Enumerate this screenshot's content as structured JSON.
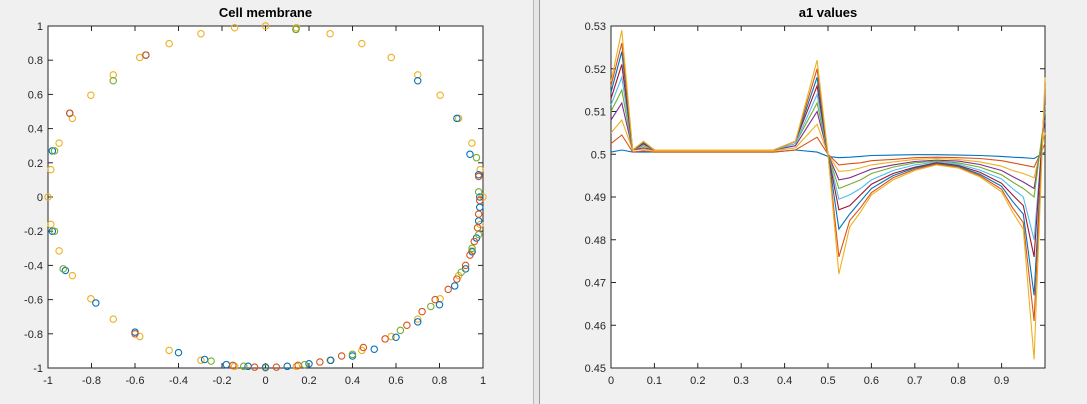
{
  "chart_data": [
    {
      "type": "scatter",
      "title": "Cell membrane",
      "xlim": [
        -1,
        1
      ],
      "ylim": [
        -1,
        1
      ],
      "x_ticks": [
        "-1",
        "-0.8",
        "-0.6",
        "-0.4",
        "-0.2",
        "0",
        "0.2",
        "0.4",
        "0.6",
        "0.8",
        "1"
      ],
      "y_ticks": [
        "-1",
        "-0.8",
        "-0.6",
        "-0.4",
        "-0.2",
        "0",
        "0.2",
        "0.4",
        "0.6",
        "0.8",
        "1"
      ],
      "grid": false,
      "marker": "open circle",
      "colors": [
        "#0072bd",
        "#d95319",
        "#edb120",
        "#7e2f8e",
        "#77ac30",
        "#4dbeee",
        "#a2142f"
      ],
      "series": [
        {
          "color": "#edb120",
          "points": [
            [
              1.0,
              0.0
            ],
            [
              0.987,
              0.16
            ],
            [
              0.949,
              0.315
            ],
            [
              0.888,
              0.46
            ],
            [
              0.803,
              0.595
            ],
            [
              0.7,
              0.714
            ],
            [
              0.578,
              0.816
            ],
            [
              0.443,
              0.897
            ],
            [
              0.297,
              0.955
            ],
            [
              0.142,
              0.99
            ],
            [
              0.0,
              1.0
            ],
            [
              -0.142,
              0.99
            ],
            [
              -0.297,
              0.955
            ],
            [
              -0.443,
              0.897
            ],
            [
              -0.578,
              0.816
            ],
            [
              -0.7,
              0.714
            ],
            [
              -0.803,
              0.595
            ],
            [
              -0.888,
              0.46
            ],
            [
              -0.949,
              0.315
            ],
            [
              -0.987,
              0.16
            ],
            [
              -1.0,
              0.0
            ],
            [
              -0.987,
              -0.16
            ],
            [
              -0.949,
              -0.315
            ],
            [
              -0.888,
              -0.46
            ],
            [
              -0.803,
              -0.595
            ],
            [
              -0.7,
              -0.714
            ],
            [
              -0.578,
              -0.816
            ],
            [
              -0.443,
              -0.897
            ],
            [
              -0.297,
              -0.955
            ],
            [
              -0.142,
              -0.99
            ],
            [
              0.0,
              -1.0
            ],
            [
              0.142,
              -0.99
            ],
            [
              0.297,
              -0.955
            ],
            [
              0.443,
              -0.897
            ],
            [
              0.578,
              -0.816
            ],
            [
              0.7,
              -0.714
            ],
            [
              0.803,
              -0.595
            ],
            [
              0.888,
              -0.46
            ],
            [
              0.949,
              -0.315
            ],
            [
              0.987,
              -0.16
            ]
          ]
        },
        {
          "color": "#0072bd",
          "points": [
            [
              0.985,
              0.0
            ],
            [
              0.98,
              0.13
            ],
            [
              0.94,
              0.25
            ],
            [
              0.88,
              0.46
            ],
            [
              0.7,
              0.68
            ],
            [
              0.14,
              0.98
            ],
            [
              -0.55,
              0.83
            ],
            [
              -0.9,
              0.49
            ],
            [
              -0.98,
              0.27
            ],
            [
              -0.98,
              -0.2
            ],
            [
              -0.92,
              -0.43
            ],
            [
              -0.78,
              -0.62
            ],
            [
              -0.6,
              -0.79
            ],
            [
              -0.4,
              -0.91
            ],
            [
              -0.28,
              -0.95
            ],
            [
              -0.18,
              -0.98
            ],
            [
              -0.08,
              -0.99
            ],
            [
              0.0,
              -0.995
            ],
            [
              0.1,
              -0.99
            ],
            [
              0.2,
              -0.975
            ],
            [
              0.3,
              -0.955
            ],
            [
              0.4,
              -0.93
            ],
            [
              0.5,
              -0.89
            ],
            [
              0.6,
              -0.82
            ],
            [
              0.7,
              -0.73
            ],
            [
              0.8,
              -0.63
            ],
            [
              0.87,
              -0.52
            ],
            [
              0.92,
              -0.42
            ],
            [
              0.95,
              -0.32
            ],
            [
              0.97,
              -0.24
            ],
            [
              0.98,
              -0.14
            ],
            [
              0.985,
              -0.06
            ]
          ]
        },
        {
          "color": "#d95319",
          "points": [
            [
              0.985,
              -0.02
            ],
            [
              0.98,
              -0.1
            ],
            [
              0.975,
              -0.18
            ],
            [
              0.96,
              -0.26
            ],
            [
              0.94,
              -0.34
            ],
            [
              0.92,
              -0.4
            ],
            [
              0.88,
              -0.48
            ],
            [
              0.84,
              -0.54
            ],
            [
              0.78,
              -0.6
            ],
            [
              0.72,
              -0.67
            ],
            [
              0.65,
              -0.75
            ],
            [
              0.55,
              -0.83
            ],
            [
              0.45,
              -0.88
            ],
            [
              0.35,
              -0.93
            ],
            [
              0.25,
              -0.965
            ],
            [
              0.15,
              -0.985
            ],
            [
              0.05,
              -0.995
            ],
            [
              -0.05,
              -0.995
            ],
            [
              -0.15,
              -0.985
            ],
            [
              -0.6,
              -0.8
            ],
            [
              -0.9,
              0.49
            ],
            [
              -0.55,
              0.83
            ],
            [
              0.98,
              0.12
            ]
          ]
        },
        {
          "color": "#77ac30",
          "points": [
            [
              0.97,
              0.23
            ],
            [
              0.98,
              -0.22
            ],
            [
              0.95,
              -0.3
            ],
            [
              0.9,
              -0.44
            ],
            [
              0.76,
              -0.64
            ],
            [
              0.62,
              -0.78
            ],
            [
              0.4,
              -0.92
            ],
            [
              0.18,
              -0.98
            ],
            [
              -0.1,
              -0.99
            ],
            [
              -0.25,
              -0.96
            ],
            [
              -0.93,
              -0.42
            ],
            [
              -0.97,
              -0.2
            ],
            [
              -0.97,
              0.27
            ],
            [
              -0.7,
              0.68
            ],
            [
              0.14,
              0.98
            ],
            [
              0.98,
              0.03
            ]
          ]
        }
      ]
    },
    {
      "type": "line",
      "title": "a1 values",
      "xlim": [
        0,
        1
      ],
      "ylim": [
        0.45,
        0.53
      ],
      "x_ticks": [
        "0",
        "0.1",
        "0.2",
        "0.3",
        "0.4",
        "0.5",
        "0.6",
        "0.7",
        "0.8",
        "0.9"
      ],
      "y_ticks": [
        "0.45",
        "0.46",
        "0.47",
        "0.48",
        "0.49",
        "0.5",
        "0.51",
        "0.52",
        "0.53"
      ],
      "grid": false,
      "x": [
        0.0,
        0.025,
        0.05,
        0.075,
        0.1,
        0.2,
        0.3,
        0.375,
        0.425,
        0.475,
        0.5,
        0.525,
        0.55,
        0.575,
        0.6,
        0.65,
        0.7,
        0.75,
        0.8,
        0.85,
        0.9,
        0.925,
        0.95,
        0.975,
        1.0
      ],
      "series": [
        {
          "color": "#0072bd",
          "values": [
            0.5005,
            0.501,
            0.5005,
            0.5005,
            0.5005,
            0.5005,
            0.5005,
            0.5005,
            0.501,
            0.5005,
            0.4995,
            0.4992,
            0.4993,
            0.4995,
            0.4997,
            0.4998,
            0.4999,
            0.4999,
            0.4998,
            0.4997,
            0.4995,
            0.4993,
            0.4992,
            0.499,
            0.5005
          ]
        },
        {
          "color": "#d95319",
          "values": [
            0.5025,
            0.5045,
            0.5005,
            0.5008,
            0.5005,
            0.5005,
            0.5005,
            0.5005,
            0.501,
            0.504,
            0.5,
            0.4975,
            0.4978,
            0.498,
            0.4985,
            0.4988,
            0.4992,
            0.4993,
            0.4992,
            0.499,
            0.4985,
            0.498,
            0.4975,
            0.497,
            0.5025
          ]
        },
        {
          "color": "#edb120",
          "values": [
            0.505,
            0.508,
            0.501,
            0.5012,
            0.5008,
            0.5008,
            0.5008,
            0.5008,
            0.5015,
            0.507,
            0.5,
            0.496,
            0.4962,
            0.4968,
            0.4975,
            0.4982,
            0.4988,
            0.499,
            0.4988,
            0.4982,
            0.4972,
            0.4962,
            0.4955,
            0.4945,
            0.505
          ]
        },
        {
          "color": "#7e2f8e",
          "values": [
            0.508,
            0.512,
            0.501,
            0.5015,
            0.501,
            0.501,
            0.501,
            0.501,
            0.502,
            0.51,
            0.5,
            0.494,
            0.4945,
            0.4955,
            0.4965,
            0.4975,
            0.4983,
            0.4986,
            0.4984,
            0.4976,
            0.4962,
            0.4948,
            0.4935,
            0.492,
            0.508
          ]
        },
        {
          "color": "#77ac30",
          "values": [
            0.51,
            0.515,
            0.501,
            0.502,
            0.501,
            0.501,
            0.501,
            0.501,
            0.5025,
            0.512,
            0.5,
            0.492,
            0.493,
            0.494,
            0.4955,
            0.497,
            0.498,
            0.4984,
            0.498,
            0.497,
            0.4952,
            0.4935,
            0.492,
            0.49,
            0.51
          ]
        },
        {
          "color": "#4dbeee",
          "values": [
            0.5115,
            0.518,
            0.501,
            0.5022,
            0.501,
            0.501,
            0.501,
            0.501,
            0.5025,
            0.514,
            0.5,
            0.4895,
            0.4905,
            0.492,
            0.494,
            0.4962,
            0.4975,
            0.4982,
            0.4977,
            0.4963,
            0.4942,
            0.492,
            0.49,
            0.48,
            0.5115
          ]
        },
        {
          "color": "#a2142f",
          "values": [
            0.513,
            0.521,
            0.501,
            0.5025,
            0.501,
            0.501,
            0.501,
            0.501,
            0.503,
            0.516,
            0.5,
            0.487,
            0.488,
            0.4905,
            0.493,
            0.4955,
            0.497,
            0.498,
            0.4974,
            0.4958,
            0.4932,
            0.4905,
            0.488,
            0.476,
            0.513
          ]
        },
        {
          "color": "#0072bd",
          "values": [
            0.5145,
            0.524,
            0.501,
            0.5028,
            0.501,
            0.501,
            0.501,
            0.501,
            0.503,
            0.518,
            0.5,
            0.4825,
            0.486,
            0.489,
            0.492,
            0.495,
            0.4968,
            0.4978,
            0.4972,
            0.4953,
            0.4925,
            0.489,
            0.486,
            0.467,
            0.5145
          ]
        },
        {
          "color": "#d95319",
          "values": [
            0.516,
            0.526,
            0.501,
            0.503,
            0.501,
            0.501,
            0.501,
            0.501,
            0.503,
            0.52,
            0.5,
            0.476,
            0.4845,
            0.4875,
            0.491,
            0.4945,
            0.4965,
            0.4977,
            0.497,
            0.495,
            0.4918,
            0.4875,
            0.484,
            0.461,
            0.516
          ]
        },
        {
          "color": "#edb120",
          "values": [
            0.517,
            0.529,
            0.501,
            0.503,
            0.501,
            0.501,
            0.501,
            0.501,
            0.503,
            0.522,
            0.5,
            0.472,
            0.483,
            0.4865,
            0.4905,
            0.494,
            0.4962,
            0.4975,
            0.4968,
            0.4947,
            0.4912,
            0.4865,
            0.4825,
            0.452,
            0.518
          ]
        }
      ]
    }
  ]
}
